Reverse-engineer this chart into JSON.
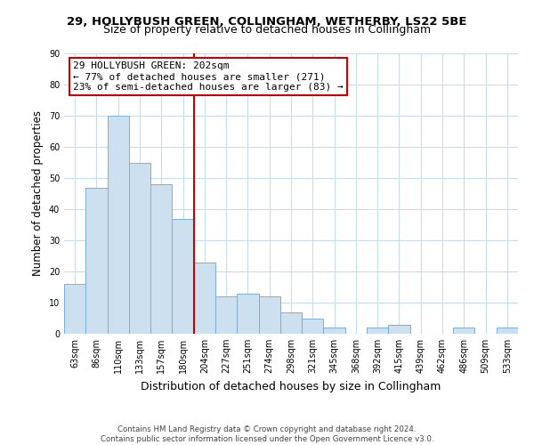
{
  "title1": "29, HOLLYBUSH GREEN, COLLINGHAM, WETHERBY, LS22 5BE",
  "title2": "Size of property relative to detached houses in Collingham",
  "xlabel": "Distribution of detached houses by size in Collingham",
  "ylabel": "Number of detached properties",
  "bar_labels": [
    "63sqm",
    "86sqm",
    "110sqm",
    "133sqm",
    "157sqm",
    "180sqm",
    "204sqm",
    "227sqm",
    "251sqm",
    "274sqm",
    "298sqm",
    "321sqm",
    "345sqm",
    "368sqm",
    "392sqm",
    "415sqm",
    "439sqm",
    "462sqm",
    "486sqm",
    "509sqm",
    "533sqm"
  ],
  "bar_values": [
    16,
    47,
    70,
    55,
    48,
    37,
    23,
    12,
    13,
    12,
    7,
    5,
    2,
    0,
    2,
    3,
    0,
    0,
    2,
    0,
    2
  ],
  "bar_color": "#cde0f0",
  "bar_edge_color": "#7ab0d4",
  "ylim": [
    0,
    90
  ],
  "yticks": [
    0,
    10,
    20,
    30,
    40,
    50,
    60,
    70,
    80,
    90
  ],
  "vline_color": "#cc0000",
  "annotation_title": "29 HOLLYBUSH GREEN: 202sqm",
  "annotation_line1": "← 77% of detached houses are smaller (271)",
  "annotation_line2": "23% of semi-detached houses are larger (83) →",
  "annotation_box_color": "#ffffff",
  "annotation_box_edge": "#cc0000",
  "footer1": "Contains HM Land Registry data © Crown copyright and database right 2024.",
  "footer2": "Contains public sector information licensed under the Open Government Licence v3.0.",
  "bg_color": "#ffffff",
  "grid_color": "#c8dcea"
}
